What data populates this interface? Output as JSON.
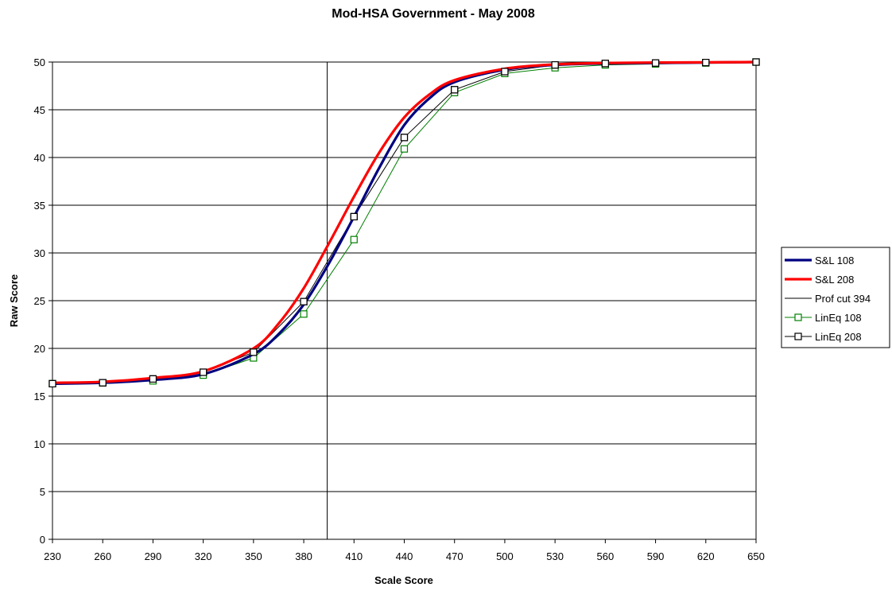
{
  "chart_data": {
    "type": "line",
    "title": "Mod-HSA Government - May 2008",
    "xlabel": "Scale Score",
    "ylabel": "Raw Score",
    "xlim": [
      230,
      650
    ],
    "ylim": [
      0,
      50
    ],
    "xticks": [
      230,
      260,
      290,
      320,
      350,
      380,
      410,
      440,
      470,
      500,
      530,
      560,
      590,
      620,
      650
    ],
    "yticks": [
      0,
      5,
      10,
      15,
      20,
      25,
      30,
      35,
      40,
      45,
      50
    ],
    "grid": "horizontal",
    "legend_position": "right",
    "prof_cut": 394,
    "series": [
      {
        "name": "S&L 108",
        "color": "#000080",
        "style": "thick-line",
        "x": [
          230,
          260,
          290,
          320,
          350,
          365,
          380,
          395,
          410,
          425,
          440,
          455,
          470,
          500,
          530,
          560,
          590,
          620,
          650
        ],
        "y": [
          16.3,
          16.4,
          16.7,
          17.3,
          19.4,
          21.5,
          24.6,
          28.9,
          33.8,
          38.9,
          43.4,
          46.2,
          47.9,
          49.2,
          49.7,
          49.85,
          49.9,
          49.95,
          50
        ]
      },
      {
        "name": "S&L 208",
        "color": "#ff0000",
        "style": "thick-line",
        "x": [
          230,
          260,
          290,
          320,
          350,
          365,
          380,
          395,
          410,
          425,
          440,
          455,
          470,
          500,
          530,
          560,
          590,
          620,
          650
        ],
        "y": [
          16.4,
          16.5,
          16.9,
          17.6,
          20.0,
          22.6,
          26.3,
          31.0,
          35.9,
          40.5,
          44.2,
          46.6,
          48.1,
          49.3,
          49.75,
          49.9,
          49.95,
          49.97,
          50
        ]
      },
      {
        "name": "Prof cut 394",
        "color": "#000000",
        "style": "thin-line"
      },
      {
        "name": "LinEq 108",
        "color": "#008000",
        "style": "square-markers",
        "x": [
          230,
          260,
          290,
          320,
          350,
          380,
          410,
          440,
          470,
          500,
          530,
          560,
          590,
          620,
          650
        ],
        "y": [
          16.3,
          16.4,
          16.6,
          17.2,
          19.0,
          23.6,
          31.4,
          40.9,
          46.8,
          48.8,
          49.4,
          49.7,
          49.8,
          49.9,
          50
        ]
      },
      {
        "name": "LinEq 208",
        "color": "#000000",
        "style": "square-markers",
        "x": [
          230,
          260,
          290,
          320,
          350,
          380,
          410,
          440,
          470,
          500,
          530,
          560,
          590,
          620,
          650
        ],
        "y": [
          16.3,
          16.4,
          16.8,
          17.5,
          19.6,
          24.9,
          33.8,
          42.1,
          47.1,
          49.0,
          49.7,
          49.85,
          49.9,
          49.95,
          50
        ]
      }
    ]
  }
}
